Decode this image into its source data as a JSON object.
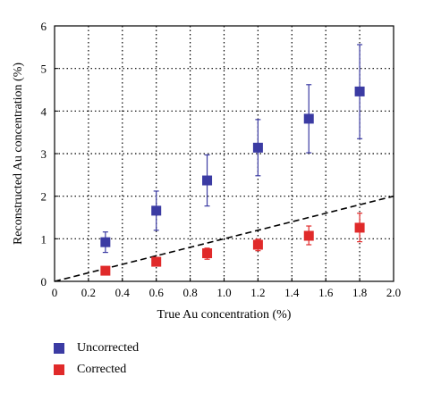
{
  "chart_data": {
    "type": "scatter",
    "xlabel": "True Au concentration (%)",
    "ylabel": "Reconstructed Au concentration (%)",
    "xlim": [
      0,
      2.0
    ],
    "ylim": [
      0,
      6
    ],
    "x_ticks": [
      "0",
      "0.2",
      "0.4",
      "0.6",
      "0.8",
      "1.0",
      "1.2",
      "1.4",
      "1.6",
      "1.8",
      "2.0"
    ],
    "y_ticks": [
      "0",
      "1",
      "2",
      "3",
      "4",
      "5",
      "6"
    ],
    "grid": true,
    "legend_position": "below",
    "series": [
      {
        "name": "Uncorrected",
        "color": "#3b3ba3",
        "marker": "square",
        "x": [
          0.3,
          0.6,
          0.9,
          1.2,
          1.5,
          1.8
        ],
        "y": [
          0.92,
          1.66,
          2.37,
          3.14,
          3.82,
          4.46
        ],
        "err_low": [
          0.68,
          1.2,
          1.77,
          2.48,
          3.02,
          3.35
        ],
        "err_high": [
          1.16,
          2.12,
          2.97,
          3.8,
          4.62,
          5.56
        ]
      },
      {
        "name": "Corrected",
        "color": "#e02a2a",
        "marker": "square",
        "x": [
          0.3,
          0.6,
          0.9,
          1.2,
          1.5,
          1.8
        ],
        "y": [
          0.25,
          0.46,
          0.66,
          0.86,
          1.07,
          1.26
        ],
        "err_low": [
          0.18,
          0.36,
          0.52,
          0.72,
          0.86,
          0.93
        ],
        "err_high": [
          0.31,
          0.56,
          0.78,
          0.99,
          1.3,
          1.6
        ]
      }
    ],
    "reference_line": {
      "style": "dashed",
      "color": "#000000",
      "x": [
        0,
        2.0
      ],
      "y": [
        0,
        2.0
      ]
    }
  }
}
